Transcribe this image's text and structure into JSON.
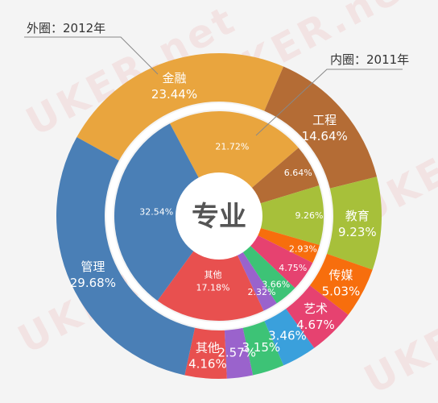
{
  "watermark": "UKER.net",
  "center_label": "专业",
  "annotations": {
    "outer": "外圈：2012年",
    "inner": "内圈：2011年"
  },
  "colors": {
    "金融": "#e9a53e",
    "工程": "#b46c35",
    "教育": "#a7c03a",
    "传媒": "#f76e0d",
    "艺术": "#e64270",
    "蓝": "#3aa0dc",
    "绿": "#3dc376",
    "紫": "#9a63cc",
    "其他": "#e8504f",
    "管理": "#4a7fb6"
  },
  "chart_data": {
    "type": "donut",
    "rings": [
      {
        "name": "外圈：2012年",
        "slices": [
          {
            "label": "金融",
            "value": 23.44,
            "display": "23.44%",
            "color_key": "金融"
          },
          {
            "label": "工程",
            "value": 14.64,
            "display": "14.64%",
            "color_key": "工程"
          },
          {
            "label": "教育",
            "value": 9.23,
            "display": "9.23%",
            "color_key": "教育"
          },
          {
            "label": "传媒",
            "value": 5.03,
            "display": "5.03%",
            "color_key": "传媒"
          },
          {
            "label": "艺术",
            "value": 4.67,
            "display": "4.67%",
            "color_key": "艺术"
          },
          {
            "label": "",
            "value": 3.46,
            "display": "3.46%",
            "color_key": "蓝"
          },
          {
            "label": "",
            "value": 3.15,
            "display": "3.15%",
            "color_key": "绿"
          },
          {
            "label": "",
            "value": 2.57,
            "display": "2.57%",
            "color_key": "紫"
          },
          {
            "label": "其他",
            "value": 4.16,
            "display": "4.16%",
            "color_key": "其他"
          },
          {
            "label": "管理",
            "value": 29.68,
            "display": "29.68%",
            "color_key": "管理"
          }
        ]
      },
      {
        "name": "内圈：2011年",
        "slices": [
          {
            "label": "",
            "value": 21.72,
            "display": "21.72%",
            "color_key": "金融"
          },
          {
            "label": "",
            "value": 6.64,
            "display": "6.64%",
            "color_key": "工程"
          },
          {
            "label": "",
            "value": 9.26,
            "display": "9.26%",
            "color_key": "教育"
          },
          {
            "label": "",
            "value": 2.93,
            "display": "2.93%",
            "color_key": "传媒"
          },
          {
            "label": "",
            "value": 4.75,
            "display": "4.75%",
            "color_key": "艺术"
          },
          {
            "label": "",
            "value": 3.66,
            "display": "3.66%",
            "color_key": "绿"
          },
          {
            "label": "",
            "value": 2.32,
            "display": "2.32%",
            "color_key": "紫"
          },
          {
            "label": "其他",
            "value": 17.18,
            "display": "17.18%",
            "color_key": "其他"
          },
          {
            "label": "",
            "value": 32.54,
            "display": "32.54%",
            "color_key": "管理"
          }
        ]
      }
    ]
  }
}
